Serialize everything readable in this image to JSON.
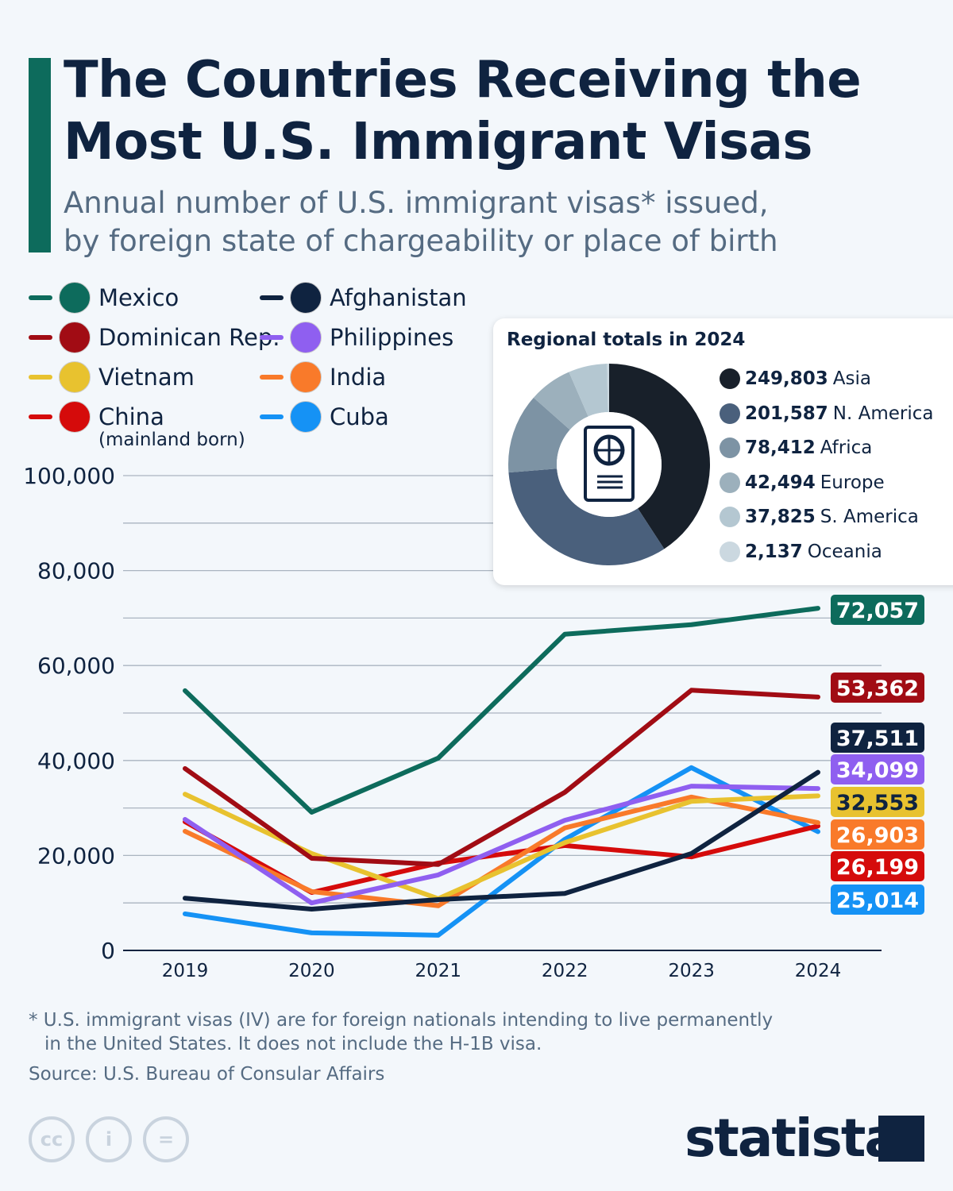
{
  "header": {
    "title_line1": "The Countries Receiving the",
    "title_line2": "Most U.S. Immigrant Visas",
    "subtitle_line1": "Annual number of U.S. immigrant visas* issued,",
    "subtitle_line2": "by foreign state of chargeability or place of birth"
  },
  "chart_data": [
    {
      "type": "line",
      "x": [
        2019,
        2020,
        2021,
        2022,
        2023,
        2024
      ],
      "ylim": [
        0,
        100000
      ],
      "yticks": [
        "0",
        "20,000",
        "40,000",
        "60,000",
        "80,000",
        "100,000"
      ],
      "xticks": [
        "2019",
        "2020",
        "2021",
        "2022",
        "2023",
        "2024"
      ],
      "grid": true,
      "legend": "top-left",
      "series": [
        {
          "name": "Mexico",
          "color": "#0d6b5c",
          "flag": "mexico-flag",
          "values": [
            54700,
            29100,
            40500,
            66600,
            68600,
            72057
          ],
          "end_label": "72,057"
        },
        {
          "name": "Dominican Rep.",
          "color": "#a10c14",
          "flag": "dominican-republic-flag",
          "values": [
            38300,
            19400,
            18100,
            33300,
            54800,
            53362
          ],
          "end_label": "53,362"
        },
        {
          "name": "Afghanistan",
          "color": "#0f2340",
          "flag": "afghanistan-flag",
          "values": [
            11000,
            8700,
            10700,
            12000,
            20400,
            37511
          ],
          "end_label": "37,511"
        },
        {
          "name": "Philippines",
          "color": "#8f5ff0",
          "flag": "philippines-flag",
          "values": [
            27600,
            10000,
            15900,
            27400,
            34600,
            34099
          ],
          "end_label": "34,099"
        },
        {
          "name": "Vietnam",
          "color": "#e8c22f",
          "flag": "vietnam-flag",
          "values": [
            32900,
            20400,
            10900,
            22700,
            31400,
            32553
          ],
          "end_label": "32,553"
        },
        {
          "name": "India",
          "color": "#f97a2a",
          "flag": "india-flag",
          "values": [
            25100,
            12400,
            9400,
            25800,
            32300,
            26903
          ],
          "end_label": "26,903"
        },
        {
          "name": "China",
          "note": "(mainland born)",
          "color": "#d50b0b",
          "flag": "china-flag",
          "values": [
            27100,
            12200,
            18400,
            22100,
            19700,
            26199
          ],
          "end_label": "26,199"
        },
        {
          "name": "Cuba",
          "color": "#1592f5",
          "flag": "cuba-flag",
          "values": [
            7700,
            3700,
            3200,
            23400,
            38500,
            25014
          ],
          "end_label": "25,014"
        }
      ]
    },
    {
      "type": "pie",
      "title": "Regional totals in 2024",
      "donut": true,
      "slices": [
        {
          "label": "Asia",
          "value": 249803,
          "value_text": "249,803",
          "color": "#18202a"
        },
        {
          "label": "N. America",
          "value": 201587,
          "value_text": "201,587",
          "color": "#4a607c"
        },
        {
          "label": "Africa",
          "value": 78412,
          "value_text": "78,412",
          "color": "#7d93a4"
        },
        {
          "label": "Europe",
          "value": 42494,
          "value_text": "42,494",
          "color": "#9cb0bc"
        },
        {
          "label": "S. America",
          "value": 37825,
          "value_text": "37,825",
          "color": "#b4c7d1"
        },
        {
          "label": "Oceania",
          "value": 2137,
          "value_text": "2,137",
          "color": "#cbd8e0"
        }
      ]
    }
  ],
  "footer": {
    "note_line1": "* U.S. immigrant visas (IV) are for foreign nationals intending to live permanently",
    "note_line2": "in the United States. It does not include the H-1B visa.",
    "source": "Source: U.S. Bureau of Consular Affairs",
    "cc_icons": [
      "cc-icon",
      "attribution-icon",
      "no-derivatives-icon"
    ],
    "brand": "statista"
  }
}
